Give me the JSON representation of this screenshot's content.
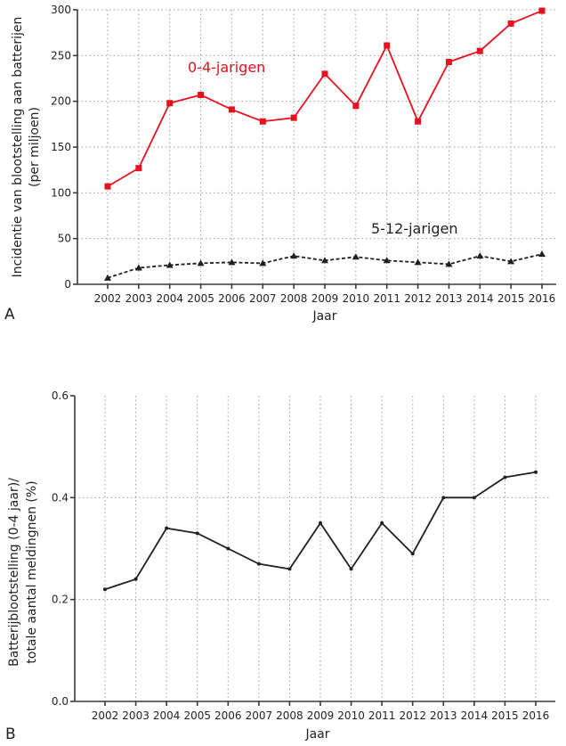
{
  "chart_data": [
    {
      "panel": "A",
      "type": "line",
      "title": "",
      "xlabel": "Jaar",
      "ylabel": "Incidentie van blootstelling aan batterijen",
      "ylabel_line2": "(per miljoen)",
      "ylim": [
        0,
        300
      ],
      "yticks": [
        0,
        50,
        100,
        150,
        200,
        250,
        300
      ],
      "categories": [
        "2002",
        "2003",
        "2004",
        "2005",
        "2006",
        "2007",
        "2008",
        "2009",
        "2010",
        "2011",
        "2012",
        "2013",
        "2014",
        "2015",
        "2016"
      ],
      "grid": true,
      "series": [
        {
          "name": "0-4-jarigen",
          "color": "#e8101e",
          "line_style": "solid",
          "marker": "square",
          "values": [
            107,
            127,
            198,
            207,
            191,
            178,
            182,
            230,
            195,
            261,
            178,
            243,
            255,
            285,
            299
          ]
        },
        {
          "name": "5-12-jarigen",
          "color": "#231f20",
          "line_style": "dashed",
          "marker": "triangle",
          "values": [
            7,
            18,
            21,
            23,
            24,
            23,
            31,
            26,
            30,
            26,
            24,
            22,
            31,
            25,
            33
          ]
        }
      ]
    },
    {
      "panel": "B",
      "type": "line",
      "title": "",
      "xlabel": "Jaar",
      "ylabel": "Batterijblootstelling (0-4 jaar)/",
      "ylabel_line2": "totale aantal meldingnen (%)",
      "ylim": [
        0,
        0.6
      ],
      "yticks": [
        "0.0",
        "0.2",
        "0.4",
        "0.6"
      ],
      "categories": [
        "2002",
        "2003",
        "2004",
        "2005",
        "2006",
        "2007",
        "2008",
        "2009",
        "2010",
        "2011",
        "2012",
        "2013",
        "2014",
        "2015",
        "2016"
      ],
      "grid": true,
      "series": [
        {
          "name": "Batterijblootstelling 0-4 jaar",
          "color": "#231f20",
          "line_style": "solid",
          "marker": "dot",
          "values": [
            0.22,
            0.24,
            0.34,
            0.33,
            0.3,
            0.27,
            0.26,
            0.35,
            0.26,
            0.35,
            0.29,
            0.4,
            0.4,
            0.44,
            0.45
          ]
        }
      ]
    }
  ]
}
